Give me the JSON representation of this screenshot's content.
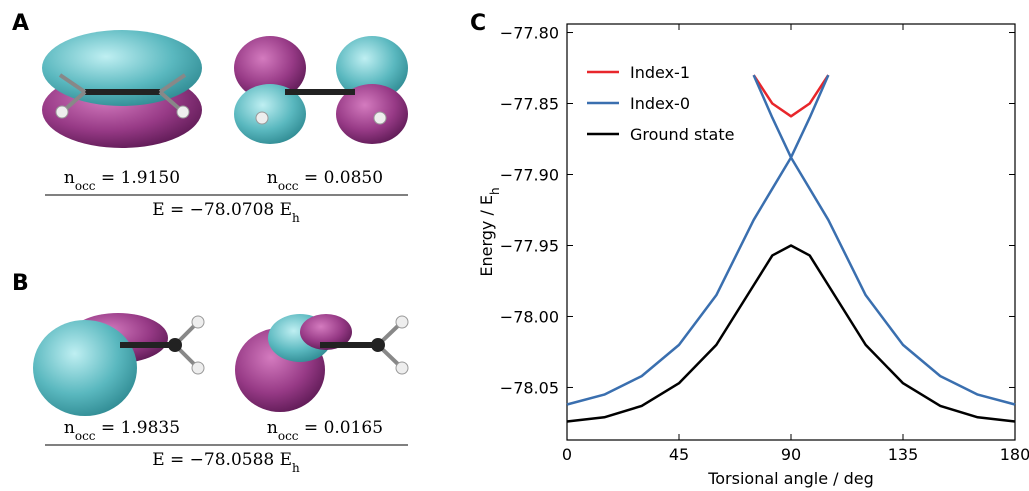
{
  "panels": [
    {
      "label": "A",
      "orbitals": [
        {
          "symbol": "n",
          "subscript": "occ",
          "value": " = 1.9150"
        },
        {
          "symbol": "n",
          "subscript": "occ",
          "value": " = 0.0850"
        }
      ],
      "energy": {
        "symbol": "E",
        "value": " = −78.0708 E",
        "subscript": "h"
      }
    },
    {
      "label": "B",
      "orbitals": [
        {
          "symbol": "n",
          "subscript": "occ",
          "value": " = 1.9835"
        },
        {
          "symbol": "n",
          "subscript": "occ",
          "value": " = 0.0165"
        }
      ],
      "energy": {
        "symbol": "E",
        "value": " = −78.0588 E",
        "subscript": "h"
      }
    }
  ],
  "chart_data": {
    "type": "line",
    "panel_label": "C",
    "x_label": "Torsional angle / deg",
    "y_label": {
      "text": "Energy / E",
      "subscript": "h"
    },
    "xlim": [
      0,
      180
    ],
    "xticks": [
      0,
      45,
      90,
      135,
      180
    ],
    "ylim": [
      -78.087,
      -77.794
    ],
    "yticks": [
      {
        "value": -77.8,
        "label": "−77.80"
      },
      {
        "value": -77.85,
        "label": "−77.85"
      },
      {
        "value": -77.9,
        "label": "−77.90"
      },
      {
        "value": -77.95,
        "label": "−77.95"
      },
      {
        "value": -78.0,
        "label": "−78.00"
      },
      {
        "value": -78.05,
        "label": "−78.05"
      }
    ],
    "grid": false,
    "legend": "upper left",
    "series": [
      {
        "name": "Index-1",
        "color": "#e8262b",
        "x": [
          75,
          82.5,
          90,
          97.5,
          105
        ],
        "values": [
          -77.83,
          -77.85,
          -77.859,
          -77.85,
          -77.83
        ]
      },
      {
        "name": "Index-0",
        "color": "#3a6faf",
        "x": [
          0,
          15,
          30,
          45,
          60,
          75,
          82.5,
          90,
          97.5,
          105,
          null,
          75,
          82.5,
          90,
          105,
          120,
          135,
          150,
          165,
          180
        ],
        "values": [
          -78.062,
          -78.055,
          -78.042,
          -78.02,
          -77.985,
          -77.932,
          -77.91,
          -77.888,
          -77.86,
          -77.83,
          null,
          -77.83,
          -77.86,
          -77.888,
          -77.932,
          -77.985,
          -78.02,
          -78.042,
          -78.055,
          -78.062
        ]
      },
      {
        "name": "Ground state",
        "color": "#000000",
        "x": [
          0,
          15,
          30,
          45,
          60,
          75,
          82.5,
          90,
          97.5,
          105,
          120,
          135,
          150,
          165,
          180
        ],
        "values": [
          -78.074,
          -78.071,
          -78.063,
          -78.047,
          -78.02,
          -77.978,
          -77.957,
          -77.95,
          -77.957,
          -77.978,
          -78.02,
          -78.047,
          -78.063,
          -78.071,
          -78.074
        ]
      }
    ]
  }
}
